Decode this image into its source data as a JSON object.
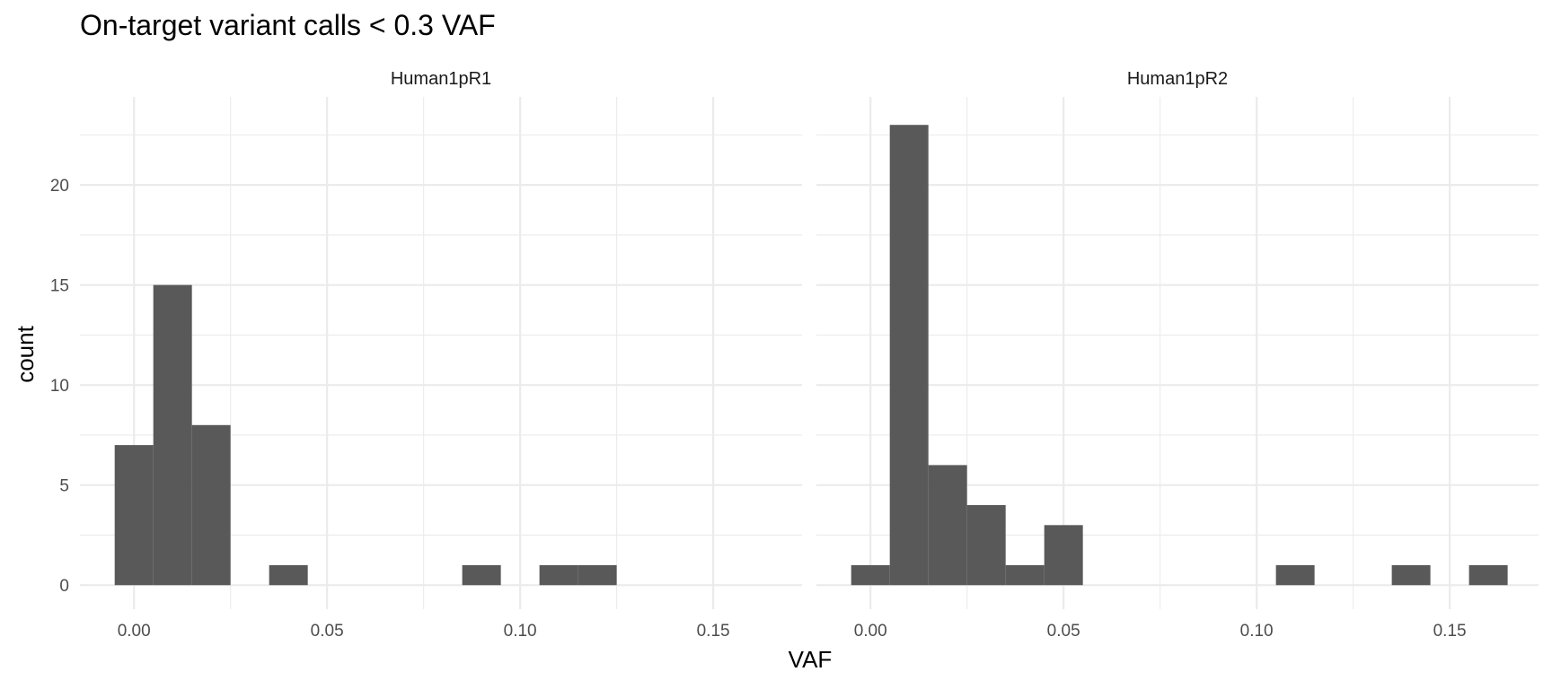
{
  "chart_data": {
    "type": "bar",
    "title": "On-target variant calls < 0.3 VAF",
    "xlabel": "VAF",
    "ylabel": "count",
    "xlim": [
      -0.014,
      0.173
    ],
    "ylim": [
      -1.2,
      24.4
    ],
    "x_ticks": [
      0.0,
      0.05,
      0.1,
      0.15
    ],
    "x_tick_labels": [
      "0.00",
      "0.05",
      "0.10",
      "0.15"
    ],
    "y_ticks": [
      0,
      5,
      10,
      15,
      20
    ],
    "y_tick_labels": [
      "0",
      "5",
      "10",
      "15",
      "20"
    ],
    "grid": true,
    "bar_color": "#595959",
    "bin_width": 0.01,
    "panels": [
      {
        "name": "Human1pR1",
        "bins": [
          {
            "x": 0.0,
            "count": 7
          },
          {
            "x": 0.01,
            "count": 15
          },
          {
            "x": 0.02,
            "count": 8
          },
          {
            "x": 0.04,
            "count": 1
          },
          {
            "x": 0.09,
            "count": 1
          },
          {
            "x": 0.11,
            "count": 1
          },
          {
            "x": 0.12,
            "count": 1
          }
        ]
      },
      {
        "name": "Human1pR2",
        "bins": [
          {
            "x": 0.0,
            "count": 1
          },
          {
            "x": 0.01,
            "count": 23
          },
          {
            "x": 0.02,
            "count": 6
          },
          {
            "x": 0.03,
            "count": 4
          },
          {
            "x": 0.04,
            "count": 1
          },
          {
            "x": 0.05,
            "count": 3
          },
          {
            "x": 0.11,
            "count": 1
          },
          {
            "x": 0.14,
            "count": 1
          },
          {
            "x": 0.16,
            "count": 1
          }
        ]
      }
    ]
  }
}
